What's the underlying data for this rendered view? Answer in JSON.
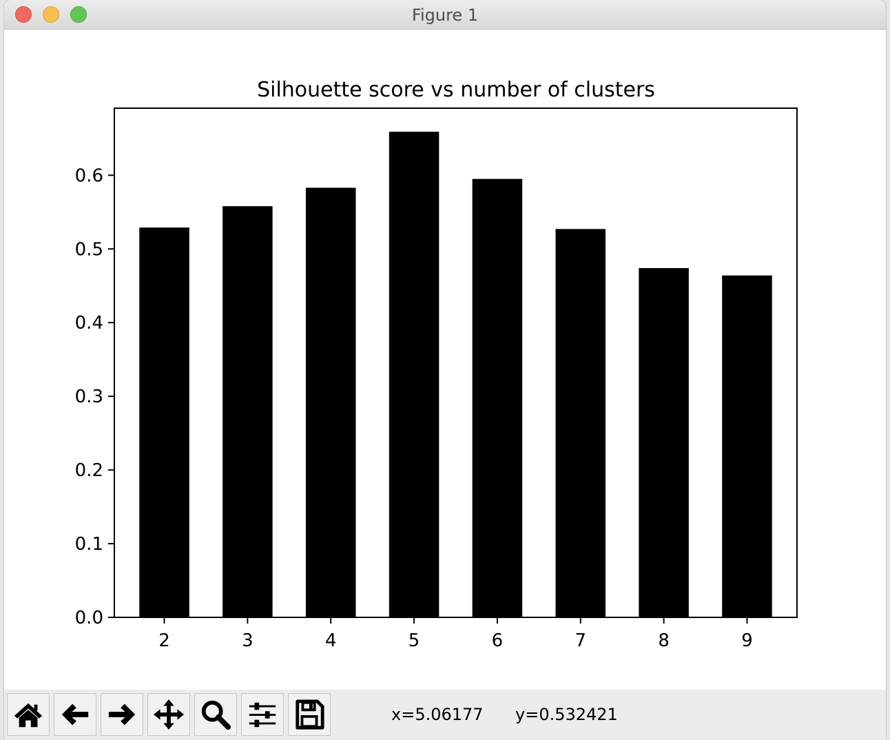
{
  "window": {
    "title": "Figure 1"
  },
  "chart_data": {
    "type": "bar",
    "title": "Silhouette score vs number of clusters",
    "xlabel": "",
    "ylabel": "",
    "categories": [
      "2",
      "3",
      "4",
      "5",
      "6",
      "7",
      "8",
      "9"
    ],
    "values": [
      0.529,
      0.558,
      0.583,
      0.659,
      0.595,
      0.527,
      0.474,
      0.464
    ],
    "yticks": [
      "0.0",
      "0.1",
      "0.2",
      "0.3",
      "0.4",
      "0.5",
      "0.6"
    ],
    "ylim": [
      0,
      0.691
    ],
    "bar_color": "#000000",
    "grid": false
  },
  "toolbar": {
    "buttons": [
      {
        "name": "home-button",
        "icon": "home-icon"
      },
      {
        "name": "back-button",
        "icon": "arrow-left-icon"
      },
      {
        "name": "forward-button",
        "icon": "arrow-right-icon"
      },
      {
        "name": "pan-button",
        "icon": "move-icon"
      },
      {
        "name": "zoom-button",
        "icon": "magnifier-icon"
      },
      {
        "name": "configure-subplots-button",
        "icon": "sliders-icon"
      },
      {
        "name": "save-button",
        "icon": "floppy-disk-icon"
      }
    ],
    "coord_x": "x=5.06177",
    "coord_y": "y=0.532421"
  }
}
